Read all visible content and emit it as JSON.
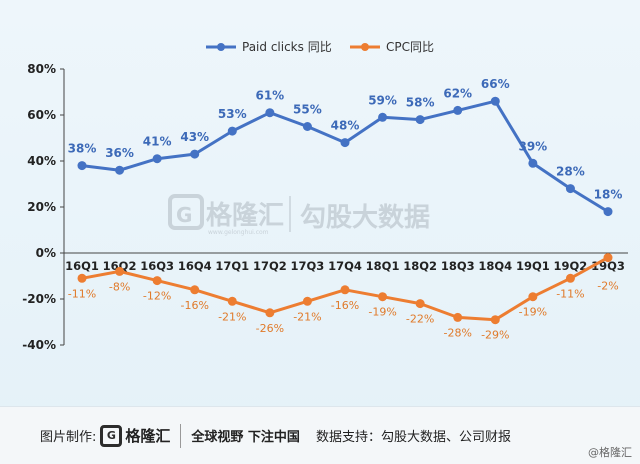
{
  "chart_data": {
    "type": "line",
    "categories": [
      "16Q1",
      "16Q2",
      "16Q3",
      "16Q4",
      "17Q1",
      "17Q2",
      "17Q3",
      "17Q4",
      "18Q1",
      "18Q2",
      "18Q3",
      "18Q4",
      "19Q1",
      "19Q2",
      "19Q3"
    ],
    "series": [
      {
        "name": "Paid clicks 同比",
        "values": [
          38,
          36,
          41,
          43,
          53,
          61,
          55,
          48,
          59,
          58,
          62,
          66,
          39,
          28,
          18
        ],
        "labels": [
          "38%",
          "36%",
          "41%",
          "43%",
          "53%",
          "61%",
          "55%",
          "48%",
          "59%",
          "58%",
          "62%",
          "66%",
          "39%",
          "28%",
          "18%"
        ],
        "color": "#4472c4"
      },
      {
        "name": "CPC同比",
        "values": [
          -11,
          -8,
          -12,
          -16,
          -21,
          -26,
          -21,
          -16,
          -19,
          -22,
          -28,
          -29,
          -19,
          -11,
          -2
        ],
        "labels": [
          "-11%",
          "-8%",
          "-12%",
          "-16%",
          "-21%",
          "-26%",
          "-21%",
          "-16%",
          "-19%",
          "-22%",
          "-28%",
          "-29%",
          "-19%",
          "-11%",
          "-2%"
        ],
        "color": "#ed7d31"
      }
    ],
    "yticks": [
      80,
      60,
      40,
      20,
      0,
      -20,
      -40
    ],
    "ytick_labels": [
      "80%",
      "60%",
      "40%",
      "20%",
      "0%",
      "-20%",
      "-40%"
    ],
    "ylim": [
      -40,
      80
    ],
    "grid": false,
    "legend": "top-center"
  },
  "watermark": {
    "logo_mark": "G",
    "brand": "格隆汇",
    "url": "www.gelonghui.com",
    "source": "勾股大数据"
  },
  "footer": {
    "credit_label": "图片制作:",
    "logo_mark": "G",
    "logo_text": "格隆汇",
    "slogan": "全球视野 下注中国",
    "support": "数据支持：勾股大数据、公司财报",
    "corner": "@格隆汇"
  }
}
